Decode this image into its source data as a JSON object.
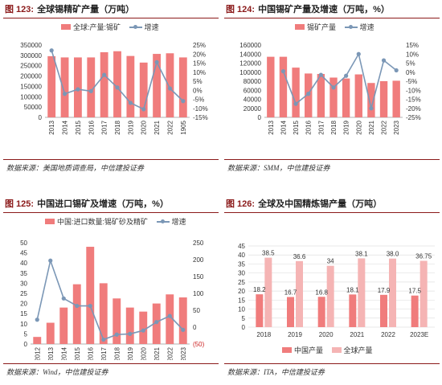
{
  "colors": {
    "bar": "#f07c7c",
    "line": "#7b97b6",
    "china": "#f07c7c",
    "global": "#f5b4b4",
    "axis_neg": "#cc2222",
    "accent": "#8b1a1a"
  },
  "panels": [
    {
      "fig": "图 123:",
      "title": "全球锡精矿产量（万吨）",
      "source": "数据来源：美国地质调查局，中信建投证券",
      "legend_bar": "全球:产量:锡矿",
      "legend_line": "增速"
    },
    {
      "fig": "图 124:",
      "title": "中国锡矿产量及增速（万吨，%）",
      "source": "数据来源：SMM，中信建投证券",
      "legend_bar": "锡矿产量",
      "legend_line": "增速"
    },
    {
      "fig": "图 125:",
      "title": "中国进口锡矿及增速（万吨，%）",
      "source": "数据来源：Wind，中信建投证券",
      "legend_bar": "中国:进口数量:锡矿砂及精矿",
      "legend_line": "增速"
    },
    {
      "fig": "图 126:",
      "title": "全球及中国精炼锡产量（万吨）",
      "source": "数据来源：ITA，中信建投证券",
      "legend_bar": "中国产量",
      "legend_line": "全球产量"
    }
  ],
  "chart_data": [
    {
      "type": "bar",
      "categories": [
        "2013",
        "2014",
        "2015",
        "2016",
        "2017",
        "2018",
        "2019",
        "2020",
        "2021",
        "2022",
        "1905"
      ],
      "series": [
        {
          "name": "全球:产量:锡矿",
          "type": "bar",
          "axis": "left",
          "values": [
            296000,
            290000,
            290000,
            290000,
            315000,
            320000,
            297000,
            265000,
            307000,
            310000,
            290000
          ]
        },
        {
          "name": "增速",
          "type": "line",
          "axis": "right",
          "values": [
            22,
            -2,
            0.5,
            -0.5,
            8.5,
            1.5,
            -7,
            -10.5,
            15.5,
            1,
            -6
          ]
        }
      ],
      "ylim_left": [
        0,
        350000
      ],
      "ylim_right": [
        -15,
        25
      ],
      "yticks_left": [
        "0",
        "50000",
        "100000",
        "150000",
        "200000",
        "250000",
        "300000",
        "350000"
      ],
      "yticks_right": [
        "-15%",
        "-10%",
        "-5%",
        "0%",
        "5%",
        "10%",
        "15%",
        "20%",
        "25%"
      ],
      "legend": "top"
    },
    {
      "type": "bar",
      "categories": [
        "2013",
        "2014",
        "2015",
        "2016",
        "2017",
        "2018",
        "2019",
        "2020",
        "2021",
        "2022",
        "2023"
      ],
      "series": [
        {
          "name": "锡矿产量",
          "type": "bar",
          "axis": "left",
          "values": [
            134000,
            134000,
            110000,
            97000,
            96000,
            88000,
            86000,
            95000,
            76000,
            80000,
            81000
          ]
        },
        {
          "name": "增速",
          "type": "line",
          "axis": "right",
          "values": null,
          "values_by_index": [
            null,
            0.5,
            -17.5,
            -12,
            -1.5,
            -8.5,
            -2,
            10,
            -20,
            6.5,
            1
          ]
        }
      ],
      "ylim_left": [
        0,
        160000
      ],
      "ylim_right": [
        -25,
        15
      ],
      "yticks_left": [
        "0",
        "20000",
        "40000",
        "60000",
        "80000",
        "100000",
        "120000",
        "140000",
        "160000"
      ],
      "yticks_right": [
        "-25%",
        "-20%",
        "-15%",
        "-10%",
        "-5%",
        "0%",
        "5%",
        "10%",
        "15%"
      ],
      "legend": "top"
    },
    {
      "type": "bar",
      "categories": [
        "2012",
        "2013",
        "2014",
        "2015",
        "2016",
        "2017",
        "2018",
        "2019",
        "2020",
        "2021",
        "2022",
        "2023"
      ],
      "series": [
        {
          "name": "中国:进口数量:锡矿砂及精矿",
          "type": "bar",
          "axis": "left",
          "values": [
            3.5,
            10.5,
            18,
            29.5,
            48,
            30,
            22.5,
            18,
            16,
            20,
            24.5,
            23
          ]
        },
        {
          "name": "增速",
          "type": "line",
          "axis": "right",
          "values": [
            22,
            197,
            85,
            63,
            63,
            -37,
            -22,
            -20,
            -10,
            15,
            33,
            -8
          ]
        }
      ],
      "ylim_left": [
        0,
        50
      ],
      "ylim_right": [
        -50,
        250
      ],
      "yticks_left": [
        "0",
        "5",
        "10",
        "15",
        "20",
        "25",
        "30",
        "35",
        "40",
        "45",
        "50"
      ],
      "yticks_right": [
        "(50)",
        "0",
        "50",
        "100",
        "150",
        "200",
        "250"
      ],
      "legend": "top"
    },
    {
      "type": "bar",
      "categories": [
        "2018",
        "2019",
        "2020",
        "2021",
        "2022",
        "2023E"
      ],
      "series": [
        {
          "name": "中国产量",
          "values": [
            18.2,
            16.7,
            16.8,
            18.1,
            17.9,
            17.5
          ],
          "labels": [
            "18.2",
            "16.7",
            "16.8",
            "18.1",
            "17.9",
            "17.5"
          ]
        },
        {
          "name": "全球产量",
          "values": [
            38.5,
            36.6,
            34,
            38.1,
            38.0,
            36.75
          ],
          "labels": [
            "38.5",
            "36.6",
            "34",
            "38.1",
            "38.0",
            "36.75"
          ]
        }
      ],
      "ylim": [
        0,
        45
      ],
      "yticks": [
        "0",
        "5",
        "10",
        "15",
        "20",
        "25",
        "30",
        "35",
        "40",
        "45"
      ],
      "legend": "bottom"
    }
  ]
}
